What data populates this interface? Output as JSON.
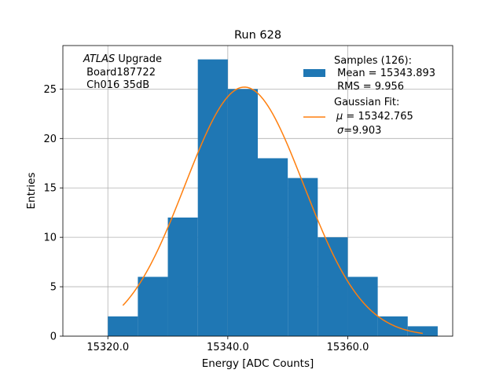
{
  "chart_data": {
    "type": "bar",
    "title": "Run 628",
    "xlabel": "Energy [ADC Counts]",
    "ylabel": "Entries",
    "xlim": [
      15312.5,
      15377.5
    ],
    "ylim": [
      0,
      29.4
    ],
    "grid": true,
    "x_ticks": [
      15320,
      15340,
      15360
    ],
    "x_tick_labels": [
      "15320.0",
      "15340.0",
      "15360.0"
    ],
    "y_ticks": [
      0,
      5,
      10,
      15,
      20,
      25
    ],
    "y_tick_labels": [
      "0",
      "5",
      "10",
      "15",
      "20",
      "25"
    ],
    "bin_edges": [
      15320,
      15325,
      15330,
      15335,
      15340,
      15345,
      15350,
      15355,
      15360,
      15365,
      15370,
      15375
    ],
    "counts": [
      2,
      6,
      12,
      28,
      25,
      18,
      16,
      10,
      6,
      2,
      1
    ],
    "fit": {
      "type": "gaussian",
      "mu": 15342.765,
      "sigma": 9.903,
      "x_range": [
        15322.5,
        15372.5
      ],
      "peak": 25.2
    },
    "hist_color": "#1f77b4",
    "fit_color": "#ff7f0e",
    "annotation": {
      "experiment": "ATLAS",
      "line1_suffix": " Upgrade",
      "line2": " Board187722",
      "line3": " Ch016 35dB"
    },
    "legend": {
      "position": "top-right",
      "samples_title": "Samples (126):",
      "samples_mean": " Mean = 15343.893",
      "samples_rms": " RMS = 9.956",
      "fit_title": "Gaussian Fit:",
      "fit_mu_symbol": "μ",
      "fit_mu_value": " = 15342.765",
      "fit_sigma_symbol": "σ",
      "fit_sigma_value": "=9.903"
    }
  }
}
